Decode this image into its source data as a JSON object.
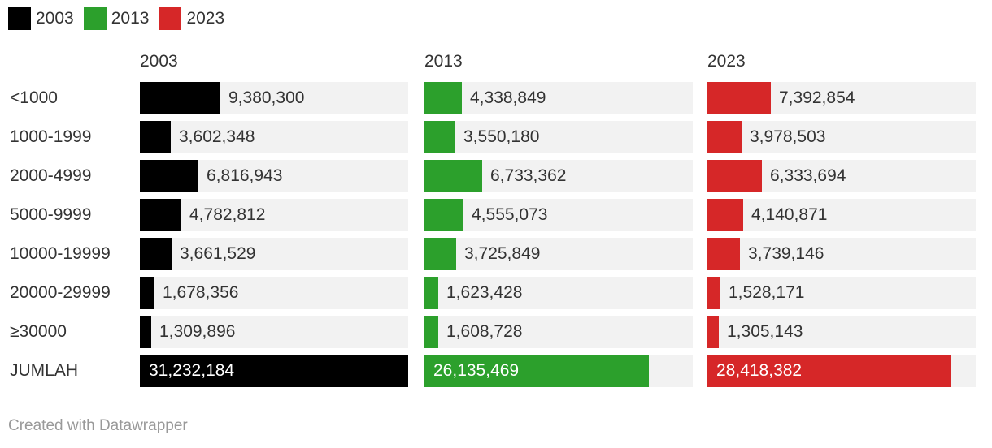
{
  "legend": [
    {
      "label": "2003",
      "color": "#000000"
    },
    {
      "label": "2013",
      "color": "#2ca02c"
    },
    {
      "label": "2023",
      "color": "#d62728"
    }
  ],
  "footer": "Created with Datawrapper",
  "chart_data": {
    "type": "bar",
    "orientation": "horizontal",
    "layout": "small-multiples",
    "categories": [
      "<1000",
      "1000-1999",
      "2000-4999",
      "5000-9999",
      "10000-19999",
      "20000-29999",
      "≥30000",
      "JUMLAH"
    ],
    "series": [
      {
        "name": "2003",
        "color": "#000000",
        "values": [
          9380300,
          3602348,
          6816943,
          4782812,
          3661529,
          1678356,
          1309896,
          31232184
        ],
        "labels": [
          "9,380,300",
          "3,602,348",
          "6,816,943",
          "4,782,812",
          "3,661,529",
          "1,678,356",
          "1,309,896",
          "31,232,184"
        ]
      },
      {
        "name": "2013",
        "color": "#2ca02c",
        "values": [
          4338849,
          3550180,
          6733362,
          4555073,
          3725849,
          1623428,
          1608728,
          26135469
        ],
        "labels": [
          "4,338,849",
          "3,550,180",
          "6,733,362",
          "4,555,073",
          "3,725,849",
          "1,623,428",
          "1,608,728",
          "26,135,469"
        ]
      },
      {
        "name": "2023",
        "color": "#d62728",
        "values": [
          7392854,
          3978503,
          6333694,
          4140871,
          3739146,
          1528171,
          1305143,
          28418382
        ],
        "labels": [
          "7,392,854",
          "3,978,503",
          "6,333,694",
          "4,140,871",
          "3,739,146",
          "1,528,171",
          "1,305,143",
          "28,418,382"
        ]
      }
    ],
    "xlim": [
      0,
      31232184
    ],
    "grid": false,
    "legend_position": "top-left"
  }
}
